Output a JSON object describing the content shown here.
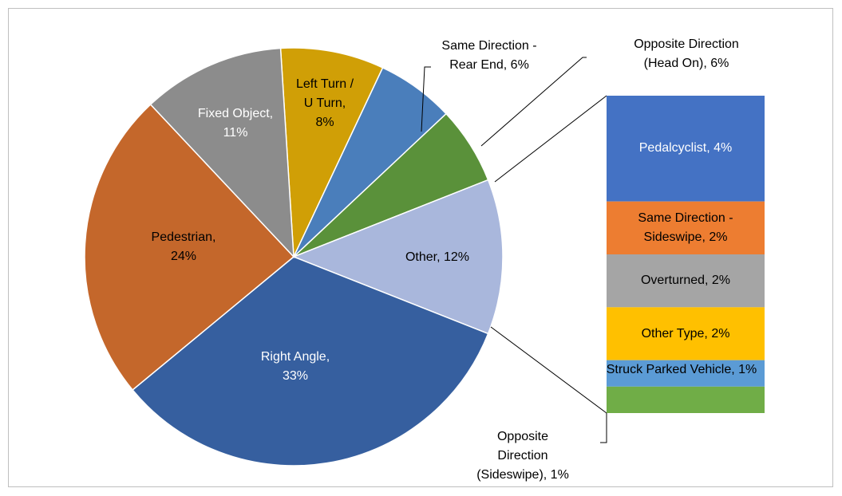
{
  "chart_data": {
    "type": "pie",
    "values": [
      8,
      6,
      6,
      12,
      33,
      24,
      11
    ],
    "value_labels": [
      "Left Turn / U Turn, 8%",
      "Same Direction - Rear End, 6%",
      "Opposite Direction (Head On), 6%",
      "Other, 12%",
      "Right Angle, 33%",
      "Pedestrian, 24%",
      "Fixed Object, 11%"
    ],
    "colors": [
      "#d09f06",
      "#4a7ebb",
      "#5a913a",
      "#a9b7dc",
      "#365f9f",
      "#c4672b",
      "#8c8c8c"
    ],
    "breakout": {
      "type": "bar",
      "values": [
        4,
        2,
        2,
        2,
        1,
        1
      ],
      "value_labels": [
        "Pedalcyclist, 4%",
        "Same Direction - Sideswipe, 2%",
        "Overturned, 2%",
        "Other Type, 2%",
        "Struck Parked Vehicle, 1%",
        "Opposite Direction (Sideswipe), 1%"
      ],
      "colors": [
        "#4472c4",
        "#ed7d31",
        "#a5a5a5",
        "#ffc000",
        "#5b9bd5",
        "#70ad47"
      ]
    }
  }
}
